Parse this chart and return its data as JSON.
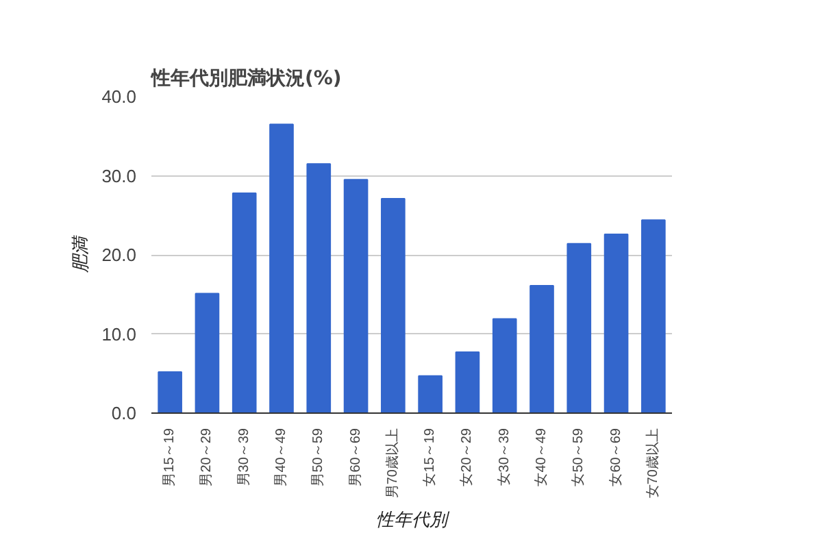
{
  "chart_data": {
    "type": "bar",
    "title": "性年代別肥満状況(%)",
    "xlabel": "性年代別",
    "ylabel": "肥満",
    "categories": [
      "男15～19",
      "男20～29",
      "男30～39",
      "男40～49",
      "男50～59",
      "男60～69",
      "男70歳以上",
      "女15～19",
      "女20～29",
      "女30～39",
      "女40～49",
      "女50～59",
      "女60～69",
      "女70歳以上"
    ],
    "series": [
      {
        "color": "#3366cc",
        "values": [
          5.2,
          15.1,
          27.8,
          36.5,
          31.5,
          29.5,
          27.1,
          4.7,
          7.7,
          11.9,
          16.1,
          21.4,
          22.6,
          24.4
        ]
      }
    ],
    "ylim": [
      0,
      40
    ],
    "yticks": [
      {
        "value": 0,
        "label": "0.0"
      },
      {
        "value": 10,
        "label": "10.0"
      },
      {
        "value": 20,
        "label": "20.0"
      },
      {
        "value": 30,
        "label": "30.0"
      },
      {
        "value": 40,
        "label": "40.0"
      }
    ],
    "grid": "y"
  }
}
